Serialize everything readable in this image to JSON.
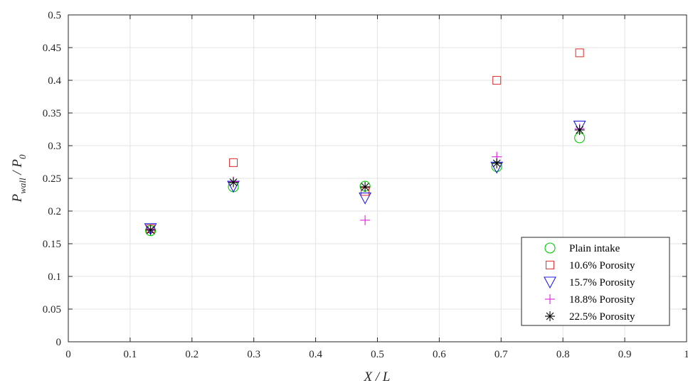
{
  "chart_data": {
    "type": "scatter",
    "xlim": [
      0,
      1
    ],
    "ylim": [
      0,
      0.5
    ],
    "x_ticks": [
      0,
      0.1,
      0.2,
      0.3,
      0.4,
      0.5,
      0.6,
      0.7,
      0.8,
      0.9,
      1
    ],
    "x_tick_labels": [
      "0",
      "0.1",
      "0.2",
      "0.3",
      "0.4",
      "0.5",
      "0.6",
      "0.7",
      "0.8",
      "0.9",
      "1"
    ],
    "y_ticks": [
      0,
      0.05,
      0.1,
      0.15,
      0.2,
      0.25,
      0.3,
      0.35,
      0.4,
      0.45,
      0.5
    ],
    "y_tick_labels": [
      "0",
      "0.05",
      "0.1",
      "0.15",
      "0.2",
      "0.25",
      "0.3",
      "0.35",
      "0.4",
      "0.45",
      "0.5"
    ],
    "xlabel": {
      "main": "X",
      "sep": " / ",
      "denom": "L"
    },
    "ylabel": {
      "p1": "P",
      "s1": "wall",
      "sep": " / ",
      "p2": "P",
      "s2": "0"
    },
    "grid": true,
    "legend_position": "bottom-right",
    "series": [
      {
        "name": "Plain intake",
        "marker": "circle",
        "color": "#00cc00",
        "x": [
          0.133,
          0.267,
          0.48,
          0.693,
          0.827
        ],
        "y": [
          0.17,
          0.237,
          0.238,
          0.268,
          0.312
        ]
      },
      {
        "name": "10.6% Porosity",
        "marker": "square",
        "color": "#e03c3c",
        "x": [
          0.133,
          0.267,
          0.48,
          0.693,
          0.827
        ],
        "y": [
          0.173,
          0.274,
          0.23,
          0.4,
          0.442
        ]
      },
      {
        "name": "15.7% Porosity",
        "marker": "triangle-down",
        "color": "#2020e0",
        "x": [
          0.133,
          0.267,
          0.48,
          0.693,
          0.827
        ],
        "y": [
          0.173,
          0.238,
          0.22,
          0.267,
          0.33
        ]
      },
      {
        "name": "18.8% Porosity",
        "marker": "plus",
        "color": "#e020e0",
        "x": [
          0.133,
          0.267,
          0.48,
          0.693,
          0.827
        ],
        "y": [
          0.172,
          0.245,
          0.186,
          0.283,
          0.326
        ]
      },
      {
        "name": "22.5% Porosity",
        "marker": "asterisk",
        "color": "#000000",
        "x": [
          0.133,
          0.267,
          0.48,
          0.693,
          0.827
        ],
        "y": [
          0.171,
          0.244,
          0.237,
          0.273,
          0.324
        ]
      }
    ]
  }
}
